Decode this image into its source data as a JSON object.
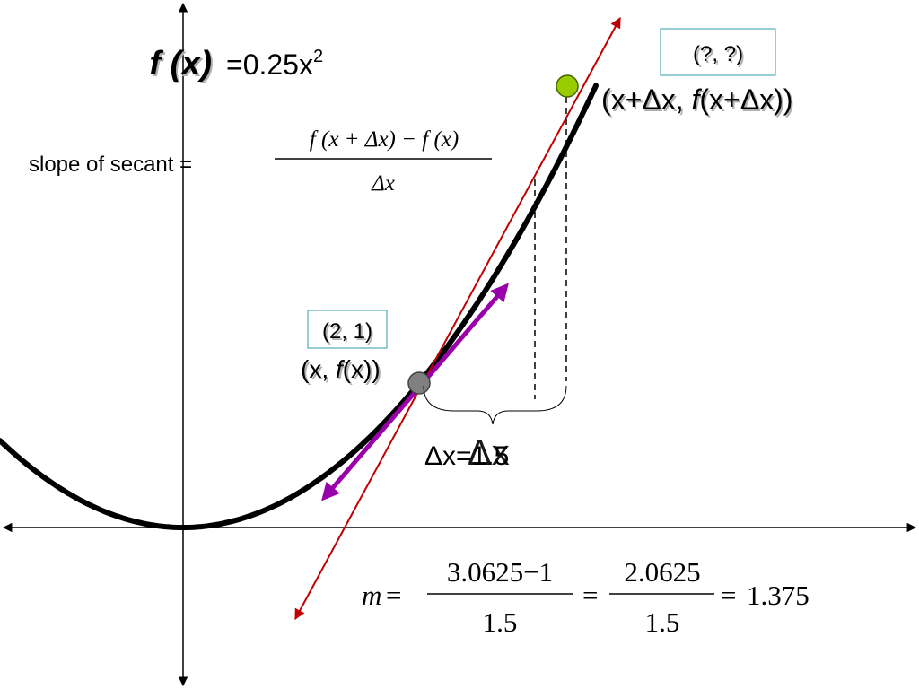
{
  "func": {
    "name": "f (x)",
    "rule": "=0.25x",
    "exponent": "2"
  },
  "secant_formula": {
    "label": "slope of secant =",
    "numerator": "f (x + Δx) − f (x)",
    "denominator": "Δx"
  },
  "point_a": {
    "coords": "(2, 1)",
    "label_pre": "(x, ",
    "label_f": "f",
    "label_post": "(x))"
  },
  "point_b": {
    "coords": "(?, ?)",
    "label_pre": "(x+Δx, ",
    "label_f": "f",
    "label_post": "(x+Δx))"
  },
  "delta": {
    "text_a": "Δx=1.5",
    "text_b": "Δx"
  },
  "slope_calc": {
    "m": "m",
    "eq": "=",
    "num1": "3.0625−1",
    "den1": "1.5",
    "num2": "2.0625",
    "den2": "1.5",
    "result": "1.375"
  },
  "colors": {
    "curve": "#000000",
    "secant": "#c00000",
    "tangent": "#9900aa",
    "point_a": "#808080",
    "point_b": "#99cc00",
    "box_border": "#2e9ea8"
  }
}
